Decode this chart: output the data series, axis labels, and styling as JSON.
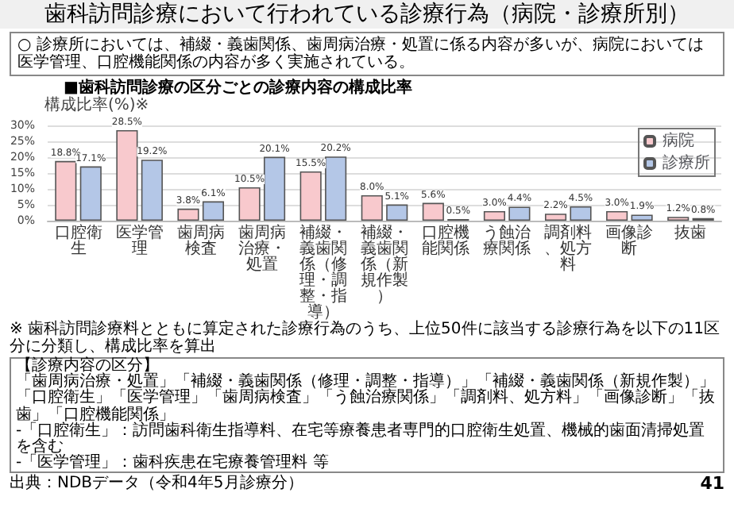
{
  "chart_data": {
    "type": "bar",
    "title": "歯科訪問診療において行われている診療行為（病院・診療所別）",
    "subtitle": "■歯科訪問診療の区分ごとの診療内容の構成比率",
    "annotations": [
      "○ 診療所においては、補綴・義歯関係、歯周病治療・処置に係る内容が多いが、病院においては医学管理、口腔機能関係の内容が多く実施されている。",
      "※ 歯科訪問診療料とともに算定された診療行為のうち、上位50件に該当する診療行為を以下の11区分に分類し、構成比率を算出",
      "【診療内容の区分】",
      "「歯周病治療・処置」「補綴・義歯関係（修理・調整・指導）」「補綴・義歯関係（新規作製）」「口腔衛生」「医学管理」「歯周病検査」「う蝕治療関係」「調剤料、処方料」「画像診断」「抜歯」「口腔機能関係」",
      "-「口腔衛生」：訪問歯科衛生指導料、在宅等療養患者専門的口腔衛生処置、機械的歯面清掃処置を含む",
      "-「医学管理」：歯科疾患在宅療養管理料 等",
      "出典：NDBデータ（令和4年5月診療分）",
      "41"
    ],
    "ylabel": "構成比率(%)※",
    "categories": [
      "口腔衛生",
      "医学管理",
      "歯周病検査",
      "歯周病治療・処置",
      "補綴・義歯関係（修理・調整・指導）",
      "補綴・義歯関係（新規作製）",
      "口腔機能関係",
      "う蝕治療関係",
      "調剤料、処方料",
      "画像診断",
      "抜歯"
    ],
    "series": [
      {
        "name": "病院",
        "color": "#f8c9cd",
        "values": [
          18.8,
          28.5,
          3.8,
          10.5,
          15.5,
          8.0,
          5.6,
          3.0,
          2.2,
          3.0,
          1.2
        ],
        "value_labels": [
          "18.8%",
          "28.5%",
          "3.8%",
          "10.5%",
          "15.5%",
          "8.0%",
          "5.6%",
          "3.0%",
          "2.2%",
          "3.0%",
          "1.2%"
        ]
      },
      {
        "name": "診療所",
        "color": "#b4c7e7",
        "values": [
          17.1,
          19.2,
          6.1,
          20.1,
          20.2,
          5.1,
          0.5,
          4.4,
          4.5,
          1.9,
          0.8
        ],
        "value_labels": [
          "17.1%",
          "19.2%",
          "6.1%",
          "20.1%",
          "20.2%",
          "5.1%",
          "0.5%",
          "4.4%",
          "4.5%",
          "1.9%",
          "0.8%"
        ]
      }
    ],
    "ylim": [
      0,
      30
    ],
    "yticks": [
      {
        "value": 0,
        "label": "0%"
      },
      {
        "value": 5,
        "label": "5%"
      },
      {
        "value": 10,
        "label": "10%"
      },
      {
        "value": 15,
        "label": "15%"
      },
      {
        "value": 20,
        "label": "20%"
      },
      {
        "value": 25,
        "label": "25%"
      },
      {
        "value": 30,
        "label": "30%"
      }
    ],
    "grid": "y",
    "legend": "top right"
  }
}
